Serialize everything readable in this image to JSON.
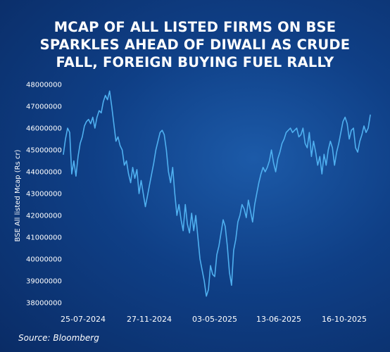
{
  "title_lines": [
    "MCAP OF ALL LISTED FIRMS ON BSE",
    "SPARKLES AHEAD OF DIWALI AS CRUDE",
    "FALL, FOREIGN BUYING FUEL RALLY"
  ],
  "source": "Source: Bloomberg",
  "colors": {
    "line": "#4fb0f0",
    "text": "#ffffff",
    "background": "#0f3f86"
  },
  "chart_data": {
    "type": "line",
    "ylabel": "BSE All listed Mcap (Rs cr)",
    "ylim": [
      38000000,
      48000000
    ],
    "yticks": [
      "48000000",
      "47000000",
      "46000000",
      "45000000",
      "44000000",
      "43000000",
      "42000000",
      "41000000",
      "40000000",
      "39000000",
      "38000000"
    ],
    "xticks": [
      "25-07-2024",
      "27-11-2024",
      "03-05-2025",
      "13-06-2025",
      "16-10-2025"
    ],
    "grid": false,
    "series": [
      {
        "values": [
          44800000,
          45500000,
          46000000,
          45800000,
          43900000,
          44500000,
          43800000,
          44700000,
          45300000,
          45600000,
          46100000,
          46300000,
          46400000,
          46200000,
          46500000,
          46000000,
          46500000,
          46800000,
          46700000,
          47200000,
          47500000,
          47300000,
          47700000,
          47000000,
          46200000,
          45400000,
          45600000,
          45200000,
          45000000,
          44300000,
          44500000,
          43900000,
          43500000,
          44200000,
          43700000,
          44100000,
          43000000,
          43600000,
          43000000,
          42400000,
          42900000,
          43400000,
          43900000,
          44400000,
          45000000,
          45400000,
          45800000,
          45900000,
          45700000,
          45000000,
          44000000,
          43500000,
          44200000,
          43000000,
          42000000,
          42500000,
          41800000,
          41300000,
          42500000,
          41600000,
          41200000,
          42100000,
          41300000,
          42000000,
          41000000,
          40000000,
          39500000,
          39000000,
          38300000,
          38600000,
          39700000,
          39300000,
          39200000,
          40200000,
          40600000,
          41200000,
          41800000,
          41500000,
          40600000,
          39400000,
          38800000,
          40400000,
          40900000,
          41700000,
          42000000,
          42500000,
          42300000,
          41900000,
          42700000,
          42200000,
          41700000,
          42500000,
          43000000,
          43500000,
          43900000,
          44200000,
          44000000,
          44200000,
          44500000,
          45000000,
          44400000,
          44000000,
          44600000,
          44900000,
          45300000,
          45500000,
          45800000,
          45900000,
          46000000,
          45800000,
          45900000,
          46000000,
          45600000,
          45700000,
          46000000,
          45300000,
          45100000,
          45800000,
          44700000,
          45400000,
          44900000,
          44300000,
          44700000,
          43900000,
          44800000,
          44300000,
          45000000,
          45400000,
          45100000,
          44300000,
          44900000,
          45300000,
          45800000,
          46300000,
          46500000,
          46200000,
          45500000,
          45900000,
          46000000,
          45100000,
          44900000,
          45400000,
          45700000,
          46100000,
          45800000,
          46000000,
          46600000
        ]
      }
    ]
  }
}
